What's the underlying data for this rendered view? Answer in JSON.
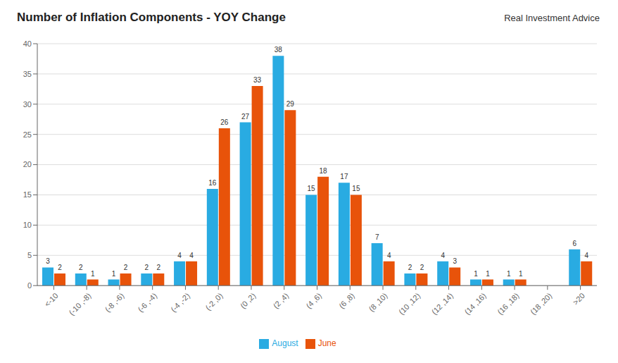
{
  "chart_data": {
    "type": "bar",
    "title": "Number of Inflation Components - YOY Change",
    "annotations": [
      "Real Investment Advice"
    ],
    "categories": [
      "<-10",
      "(-10 ,-8)",
      "(-8 ,-6)",
      "(-6 ,-4)",
      "(-4 ,-2)",
      "(-2 ,0)",
      "(0 ,2)",
      "(2 ,4)",
      "(4 ,6)",
      "(6 ,8)",
      "(8 ,10)",
      "(10 ,12)",
      "(12 ,14)",
      "(14 ,16)",
      "(16 ,18)",
      "(18 ,20)",
      ">20"
    ],
    "series": [
      {
        "name": "August",
        "color": "#29ABE2",
        "values": [
          3,
          2,
          1,
          2,
          4,
          16,
          27,
          38,
          15,
          17,
          7,
          2,
          4,
          1,
          1,
          0,
          6
        ]
      },
      {
        "name": "June",
        "color": "#E8530A",
        "values": [
          2,
          1,
          2,
          2,
          4,
          26,
          33,
          29,
          18,
          15,
          4,
          2,
          3,
          1,
          1,
          0,
          4
        ]
      }
    ],
    "ylim": [
      0,
      40
    ],
    "yticks": [
      0,
      5,
      10,
      15,
      20,
      25,
      30,
      35,
      40
    ],
    "grid": true,
    "legend": "bottom",
    "data_labels": true
  }
}
